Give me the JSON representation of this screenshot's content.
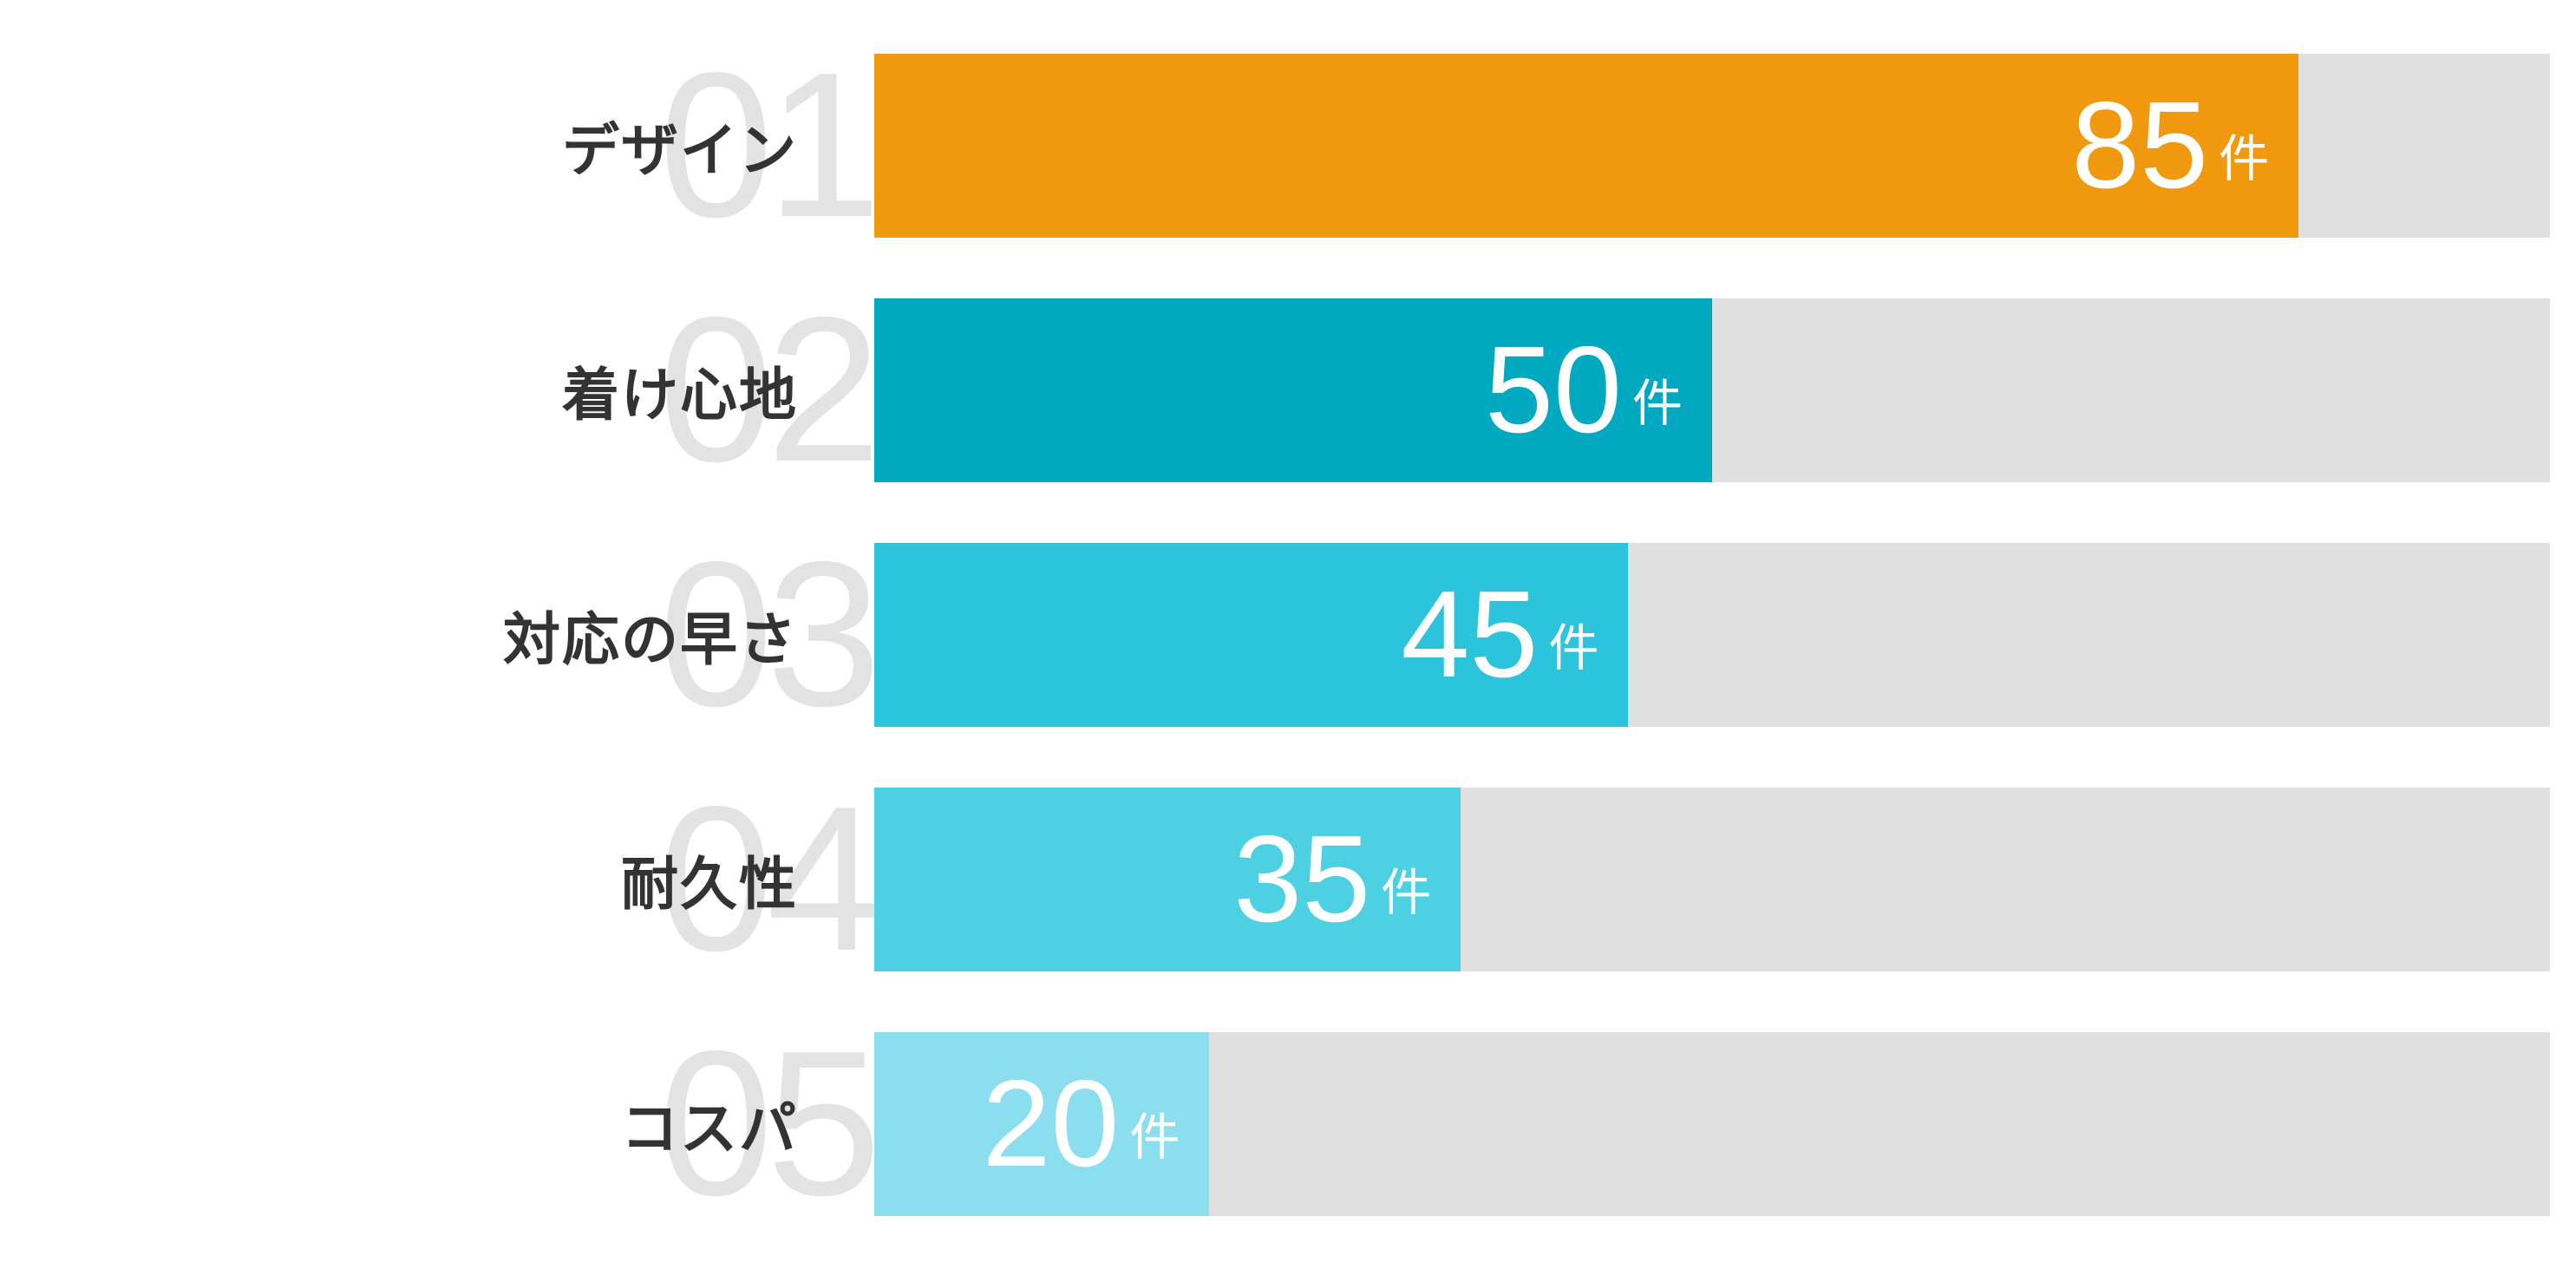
{
  "chart_data": {
    "type": "bar",
    "orientation": "horizontal",
    "title": "",
    "xlabel": "",
    "ylabel": "",
    "xlim": [
      0,
      100
    ],
    "grid": false,
    "legend": false,
    "unit": "件",
    "rank_labels": [
      "01",
      "02",
      "03",
      "04",
      "05"
    ],
    "categories": [
      "デザイン",
      "着け心地",
      "対応の早さ",
      "耐久性",
      "コスパ"
    ],
    "values": [
      85,
      50,
      45,
      35,
      20
    ],
    "bar_colors": [
      "#f0990f",
      "#00a9c0",
      "#2bc4dc",
      "#4dd0e1",
      "#8adeed"
    ],
    "track_color": "#e0e0e0",
    "rank_number_color": "#e3e3e3",
    "category_text_color": "#333333",
    "value_text_color": "#ffffff"
  }
}
